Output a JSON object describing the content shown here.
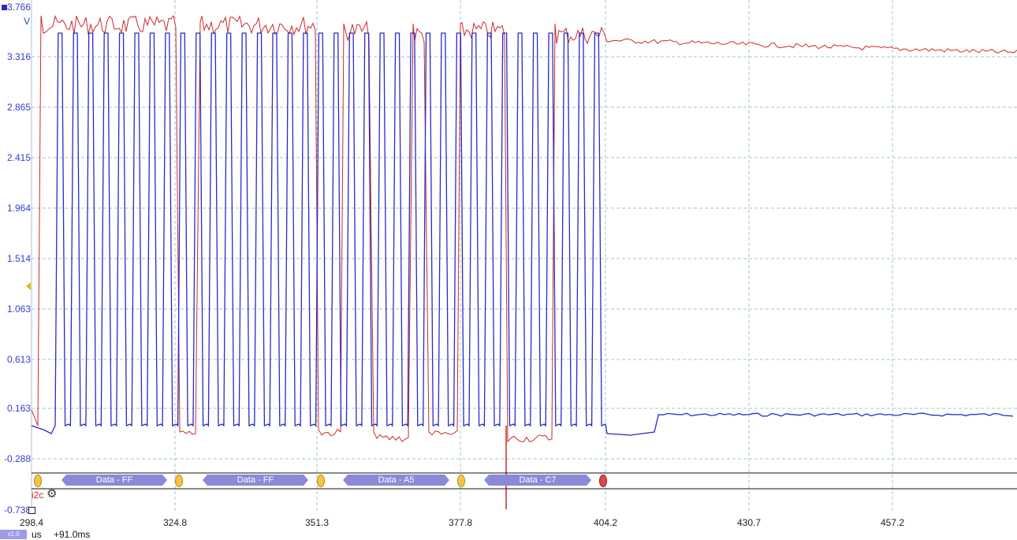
{
  "y_axis": {
    "unit": "V",
    "top_label": "3.766",
    "bottom_label": "-0.738",
    "ticks": [
      "3.316",
      "2.865",
      "2.415",
      "1.964",
      "1.514",
      "1.063",
      "0.613",
      "0.163",
      "-0.288"
    ]
  },
  "x_axis": {
    "ticks": [
      "298.4",
      "324.8",
      "351.3",
      "377.8",
      "404.2",
      "430.7",
      "457.2"
    ],
    "unit": "us",
    "offset": "+91.0ms"
  },
  "decoder": {
    "name": "i2c",
    "frames": [
      {
        "label": "Data - FF"
      },
      {
        "label": "Data - FF"
      },
      {
        "label": "Data - A5"
      },
      {
        "label": "Data - C7"
      }
    ],
    "marker_colors": {
      "start": "#f5c542",
      "stop": "#e84545"
    }
  },
  "zoom_chip": "x1.0",
  "colors": {
    "scl": "#2a2ac8",
    "sda": "#cc2a2a",
    "grid": "#9fc7cf",
    "accent": "#3a3acf"
  },
  "icons": {
    "gear": "gear-icon",
    "trigger": "trigger-arrow-icon",
    "square": "channel-square-icon"
  }
}
